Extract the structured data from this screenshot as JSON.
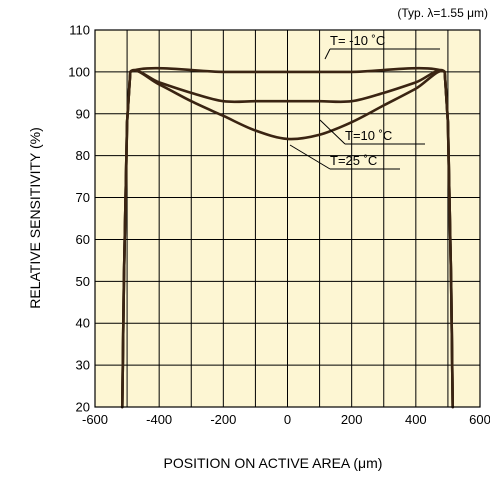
{
  "chart_data": {
    "type": "line",
    "title": "",
    "note": "(Typ. λ=1.55 μm)",
    "xlabel": "POSITION ON ACTIVE AREA (μm)",
    "ylabel": "RELATIVE SENSITIVITY (%)",
    "xlim": [
      -600,
      600
    ],
    "ylim": [
      20,
      110
    ],
    "xticks": [
      -600,
      -400,
      -200,
      0,
      200,
      400,
      600
    ],
    "yticks": [
      20,
      30,
      40,
      50,
      60,
      70,
      80,
      90,
      100,
      110
    ],
    "grid": true,
    "background_color": "#fdf6d3",
    "line_color": "#3a2412",
    "series": [
      {
        "name": "T= -10 ˚C",
        "x": [
          -515,
          -510,
          -500,
          -490,
          -200,
          0,
          200,
          490,
          500,
          510,
          515
        ],
        "y": [
          20,
          50,
          88,
          100,
          100,
          100,
          100,
          100,
          88,
          50,
          20
        ]
      },
      {
        "name": "T=10 ˚C",
        "x": [
          -515,
          -510,
          -500,
          -490,
          -400,
          -300,
          -200,
          -100,
          0,
          100,
          200,
          300,
          400,
          490,
          500,
          510,
          515
        ],
        "y": [
          20,
          50,
          88,
          100,
          97.5,
          95,
          93,
          93,
          93,
          93,
          93,
          95,
          97.5,
          100,
          88,
          50,
          20
        ]
      },
      {
        "name": "T=25 ˚C",
        "x": [
          -515,
          -510,
          -500,
          -490,
          -400,
          -300,
          -200,
          -100,
          0,
          100,
          200,
          300,
          400,
          490,
          500,
          510,
          515
        ],
        "y": [
          20,
          50,
          88,
          100,
          97,
          93,
          89.5,
          86,
          84,
          85,
          88,
          92,
          96,
          100,
          88,
          50,
          20
        ]
      }
    ]
  }
}
